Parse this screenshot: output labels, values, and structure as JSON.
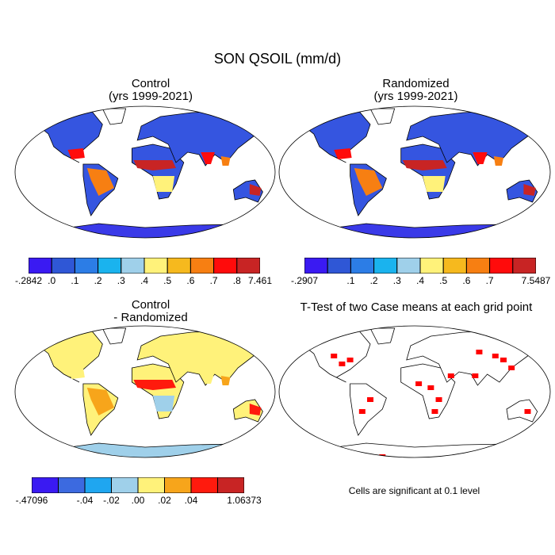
{
  "figure": {
    "title": "SON QSOIL (mm/d)"
  },
  "panels": {
    "control": {
      "line1": "Control",
      "line2": "(yrs 1999-2021)"
    },
    "randomized": {
      "line1": "Randomized",
      "line2": "(yrs 1999-2021)"
    },
    "difference": {
      "line1": "Control",
      "line2": "- Randomized"
    },
    "ttest": {
      "title": "T-Test of two Case means at each grid point",
      "note": "Cells are significant at 0.1 level"
    }
  },
  "colorbars": {
    "control": {
      "colors": [
        "#3a1af2",
        "#2f57d6",
        "#2c7de6",
        "#1ab3ee",
        "#9fd0ea",
        "#fff27a",
        "#f6b91e",
        "#f77f12",
        "#ff0b0b",
        "#c82424"
      ],
      "labels": [
        "-.2842",
        ".0",
        ".1",
        ".2",
        ".3",
        ".4",
        ".5",
        ".6",
        ".7",
        ".8",
        "7.461"
      ]
    },
    "randomized": {
      "colors": [
        "#3a1af2",
        "#2f57d6",
        "#2c7de6",
        "#1ab3ee",
        "#9fd0ea",
        "#fff27a",
        "#f6b91e",
        "#f77f12",
        "#ff0b0b",
        "#c82424"
      ],
      "labels": [
        "-.2907",
        "",
        ".1",
        ".2",
        ".3",
        ".4",
        ".5",
        ".6",
        ".7",
        "",
        "7.5487"
      ]
    },
    "difference": {
      "colors": [
        "#3a1af2",
        "#3c6ae0",
        "#1fa6f0",
        "#9fd0ea",
        "#fff27a",
        "#f7a51b",
        "#ff1a0d",
        "#c82424"
      ],
      "labels": [
        "-.47096",
        "",
        "-.04",
        "-.02",
        ".00",
        ".02",
        ".04",
        "",
        "1.06373"
      ]
    }
  },
  "map_colors": {
    "land_fill": "#ffffff",
    "ocean": "#ffffff",
    "sig": "#ff0000",
    "outline": "#000000"
  }
}
